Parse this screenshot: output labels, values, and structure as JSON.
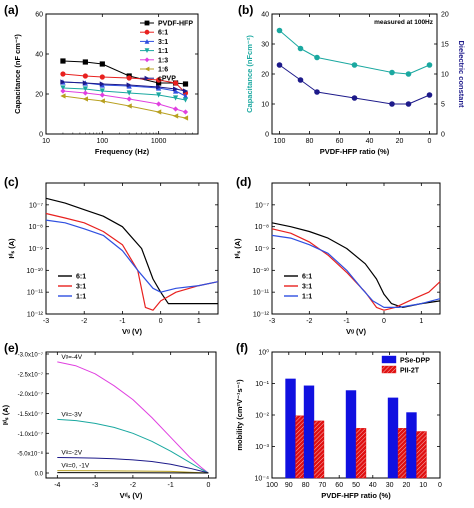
{
  "chart_data": [
    {
      "panel": "(a)",
      "type": "line",
      "xlabel": "Frequency (Hz)",
      "ylabel": "Capacitance (nF cm⁻²)",
      "xscale": "log",
      "xlim": [
        10,
        5000
      ],
      "ylim": [
        0,
        60
      ],
      "xticks": [
        10,
        100,
        1000
      ],
      "xtick_labels": [
        "10",
        "100",
        "1000"
      ],
      "yticks": [
        0,
        20,
        40,
        60
      ],
      "legend_position": "top-right",
      "series": [
        {
          "name": "PVDF-HFP",
          "marker": "square",
          "color": "#000000",
          "x": [
            20,
            50,
            100,
            300,
            1000,
            2000,
            3000
          ],
          "y": [
            36.5,
            36,
            35,
            29,
            25.5,
            25.5,
            25
          ]
        },
        {
          "name": "6:1",
          "marker": "circle",
          "color": "#e8211f",
          "x": [
            20,
            50,
            100,
            300,
            1000,
            2000,
            3000
          ],
          "y": [
            30,
            29,
            28.5,
            28,
            27,
            25.5,
            20.5
          ]
        },
        {
          "name": "3:1",
          "marker": "triangle-up",
          "color": "#2f4fe0",
          "x": [
            20,
            50,
            100,
            300,
            1000,
            2000,
            3000
          ],
          "y": [
            26,
            25.5,
            24.5,
            24,
            23,
            21.5,
            19
          ]
        },
        {
          "name": "1:1",
          "marker": "triangle-down",
          "color": "#1aa8a0",
          "x": [
            20,
            50,
            100,
            300,
            1000,
            2000,
            3000
          ],
          "y": [
            23,
            22.5,
            21.5,
            20.5,
            19.5,
            18,
            17
          ]
        },
        {
          "name": "1:3",
          "marker": "diamond",
          "color": "#e040e0",
          "x": [
            20,
            50,
            100,
            300,
            1000,
            2000,
            3000
          ],
          "y": [
            21.5,
            20.5,
            19.5,
            17.5,
            15,
            12.5,
            11
          ]
        },
        {
          "name": "1:6",
          "marker": "triangle-left",
          "color": "#b8a020",
          "x": [
            20,
            50,
            100,
            300,
            1000,
            2000,
            3000
          ],
          "y": [
            19,
            17.5,
            16.5,
            14,
            11,
            9,
            8
          ]
        },
        {
          "name": "cPVP",
          "marker": "triangle-right",
          "color": "#1d1a8a",
          "x": [
            20,
            50,
            100,
            300,
            1000,
            2000,
            3000
          ],
          "y": [
            26,
            25.5,
            25,
            24.5,
            23.5,
            22.5,
            21.5
          ]
        }
      ]
    },
    {
      "panel": "(b)",
      "type": "line",
      "annotation": "measured at 100Hz",
      "xlabel": "PVDF-HFP ratio (%)",
      "ylabel": "Capacitance (nFcm⁻²)",
      "ylabel_right": "Dielectric constant",
      "xlim": [
        105,
        -5
      ],
      "ylim": [
        0,
        40
      ],
      "ylim_right": [
        0,
        20
      ],
      "xticks": [
        100,
        80,
        60,
        40,
        20,
        0
      ],
      "yticks": [
        0,
        10,
        20,
        30,
        40
      ],
      "yticks_right": [
        0,
        5,
        10,
        15,
        20
      ],
      "series": [
        {
          "name": "Capacitance",
          "axis": "left",
          "color": "#1aa8a0",
          "x": [
            100,
            86,
            75,
            50,
            25,
            14,
            0
          ],
          "y": [
            34.5,
            28.5,
            25.5,
            23,
            20.5,
            20,
            23
          ]
        },
        {
          "name": "Dielectric constant",
          "axis": "right",
          "color": "#1d1a8a",
          "x": [
            100,
            86,
            75,
            50,
            25,
            14,
            0
          ],
          "y": [
            11.5,
            9,
            7,
            6,
            5,
            5,
            6.5
          ]
        }
      ]
    },
    {
      "panel": "(c)",
      "type": "line",
      "xlabel": "Vᵍ (V)",
      "ylabel": "Iᵈₛ (A)",
      "yscale": "log",
      "xlim": [
        -3,
        1.5
      ],
      "ylim": [
        1e-12,
        1e-06
      ],
      "xticks": [
        -3,
        -2,
        -1,
        0,
        1
      ],
      "ytick_labels": [
        "10⁻¹²",
        "10⁻¹¹",
        "10⁻¹⁰",
        "10⁻⁹",
        "10⁻⁸",
        "10⁻⁷"
      ],
      "legend_position": "bottom-left",
      "series": [
        {
          "name": "6:1",
          "color": "#000000",
          "x": [
            -3,
            -2.5,
            -2,
            -1.5,
            -1,
            -0.5,
            -0.2,
            0,
            0.2,
            0.5,
            1,
            1.5
          ],
          "y": [
            2e-07,
            1.2e-07,
            6e-08,
            3e-08,
            1e-08,
            1e-09,
            4e-11,
            1e-11,
            3e-12,
            3e-12,
            3e-12,
            3e-12
          ]
        },
        {
          "name": "3:1",
          "color": "#e8211f",
          "x": [
            -3,
            -2.5,
            -2,
            -1.5,
            -1,
            -0.6,
            -0.4,
            -0.2,
            0,
            0.4,
            1,
            1.5
          ],
          "y": [
            4e-08,
            2.5e-08,
            1.5e-08,
            6e-09,
            1.5e-09,
            1e-10,
            2e-12,
            1.5e-12,
            4e-12,
            1e-11,
            2e-11,
            3e-11
          ]
        },
        {
          "name": "1:1",
          "color": "#2f4fe0",
          "x": [
            -3,
            -2.5,
            -2,
            -1.5,
            -1,
            -0.6,
            -0.2,
            0,
            0.4,
            1,
            1.5
          ],
          "y": [
            2e-08,
            1.5e-08,
            8e-09,
            4e-09,
            8e-10,
            1e-10,
            1.5e-11,
            1e-11,
            1.5e-11,
            2e-11,
            3e-11
          ]
        }
      ]
    },
    {
      "panel": "(d)",
      "type": "line",
      "xlabel": "Vᵍ (V)",
      "ylabel": "Iᵈₛ (A)",
      "yscale": "log",
      "xlim": [
        -3,
        1.5
      ],
      "ylim": [
        1e-12,
        1e-06
      ],
      "xticks": [
        -3,
        -2,
        -1,
        0,
        1
      ],
      "ytick_labels": [
        "10⁻¹²",
        "10⁻¹¹",
        "10⁻¹⁰",
        "10⁻⁹",
        "10⁻⁸",
        "10⁻⁷"
      ],
      "legend_position": "bottom-left",
      "series": [
        {
          "name": "6:1",
          "color": "#000000",
          "x": [
            -3,
            -2.5,
            -2,
            -1.5,
            -1,
            -0.5,
            -0.2,
            0,
            0.2,
            0.5,
            1,
            1.5
          ],
          "y": [
            1.5e-08,
            1e-08,
            6e-09,
            3e-09,
            1e-09,
            2e-10,
            4e-11,
            8e-12,
            3e-12,
            2e-12,
            3e-12,
            4e-12
          ]
        },
        {
          "name": "3:1",
          "color": "#e8211f",
          "x": [
            -3,
            -2.5,
            -2,
            -1.5,
            -1,
            -0.5,
            -0.2,
            0,
            0.3,
            0.8,
            1.2,
            1.5
          ],
          "y": [
            8e-09,
            5e-09,
            2e-09,
            5e-10,
            8e-11,
            1e-11,
            2e-12,
            1.5e-12,
            2e-12,
            5e-12,
            1e-11,
            3e-11
          ]
        },
        {
          "name": "1:1",
          "color": "#2f4fe0",
          "x": [
            -3,
            -2.5,
            -2,
            -1.5,
            -1,
            -0.6,
            -0.3,
            0,
            0.4,
            1,
            1.5
          ],
          "y": [
            4e-09,
            3e-09,
            1.5e-09,
            6e-10,
            1e-10,
            1.5e-11,
            4e-12,
            2e-12,
            2e-12,
            3e-12,
            5e-12
          ]
        }
      ]
    },
    {
      "panel": "(e)",
      "type": "line",
      "xlabel": "Vᵈₛ (V)",
      "ylabel": "Iᵈₛ (A)",
      "xlim": [
        -4.3,
        0.2
      ],
      "ylim": [
        0,
        -3e-07
      ],
      "xticks": [
        -4,
        -3,
        -2,
        -1,
        0
      ],
      "yticks": [
        0,
        -5e-08,
        -1e-07,
        -1.5e-07,
        -2e-07,
        -2.5e-07,
        -3e-07
      ],
      "ytick_labels": [
        "0.0",
        "-5.0x10⁻⁸",
        "-1.0x10⁻⁷",
        "-1.5x10⁻⁷",
        "-2.0x10⁻⁷",
        "-2.5x10⁻⁷",
        "-3.0x10⁻⁷"
      ],
      "series": [
        {
          "name": "Vg=-4V",
          "label_text": "Vᵍ=-4V",
          "color": "#e040e0",
          "x": [
            -4,
            -3.5,
            -3,
            -2.5,
            -2,
            -1.5,
            -1,
            -0.5,
            -0.2,
            0
          ],
          "y": [
            -2.8e-07,
            -2.7e-07,
            -2.5e-07,
            -2.2e-07,
            -1.85e-07,
            -1.4e-07,
            -9e-08,
            -4e-08,
            -1.5e-08,
            0
          ]
        },
        {
          "name": "Vg=-3V",
          "label_text": "Vᵍ=-3V",
          "color": "#1aa8a0",
          "x": [
            -4,
            -3.5,
            -3,
            -2.5,
            -2,
            -1.5,
            -1,
            -0.5,
            -0.2,
            0
          ],
          "y": [
            -1.35e-07,
            -1.32e-07,
            -1.25e-07,
            -1.15e-07,
            -1e-07,
            -8e-08,
            -5.5e-08,
            -2.7e-08,
            -1e-08,
            0
          ]
        },
        {
          "name": "Vg=-2V",
          "label_text": "Vᵍ=-2V",
          "color": "#1d1a8a",
          "x": [
            -4,
            -3.5,
            -3,
            -2.5,
            -2,
            -1.5,
            -1,
            -0.5,
            -0.2,
            0
          ],
          "y": [
            -3.9e-08,
            -3.85e-08,
            -3.75e-08,
            -3.6e-08,
            -3.3e-08,
            -2.9e-08,
            -2.2e-08,
            -1.2e-08,
            -5e-09,
            0
          ]
        },
        {
          "name": "Vg=-1V",
          "label_text": "Vᵍ=0, -1V",
          "color": "#b8a020",
          "x": [
            -4,
            -3,
            -2,
            -1,
            -0.5,
            0
          ],
          "y": [
            -6e-09,
            -5.5e-09,
            -5e-09,
            -4e-09,
            -2e-09,
            0
          ]
        },
        {
          "name": "Vg=0V",
          "color": "#000000",
          "x": [
            -4,
            -2,
            0
          ],
          "y": [
            -1e-09,
            -8e-10,
            0
          ]
        }
      ]
    },
    {
      "panel": "(f)",
      "type": "bar",
      "xlabel": "PVDF-HFP ratio (%)",
      "ylabel": "mobility (cm²V⁻¹s⁻¹)",
      "yscale": "log",
      "xlim": [
        100,
        0
      ],
      "ylim": [
        0.0001,
        1
      ],
      "xticks": [
        100,
        90,
        80,
        70,
        60,
        50,
        40,
        30,
        20,
        10,
        0
      ],
      "ytick_labels": [
        "10⁻⁴",
        "10⁻³",
        "10⁻²",
        "10⁻¹",
        "10⁰"
      ],
      "categories": [
        86,
        75,
        50,
        25,
        14
      ],
      "legend_position": "top-right",
      "series": [
        {
          "name": "PSe-DPP",
          "color": "#1010e0",
          "values": [
            0.14,
            0.085,
            0.06,
            0.035,
            0.012
          ]
        },
        {
          "name": "PII-2T",
          "color": "#e01010",
          "values": [
            0.0095,
            0.0065,
            0.0038,
            0.0038,
            0.003
          ]
        }
      ]
    }
  ]
}
